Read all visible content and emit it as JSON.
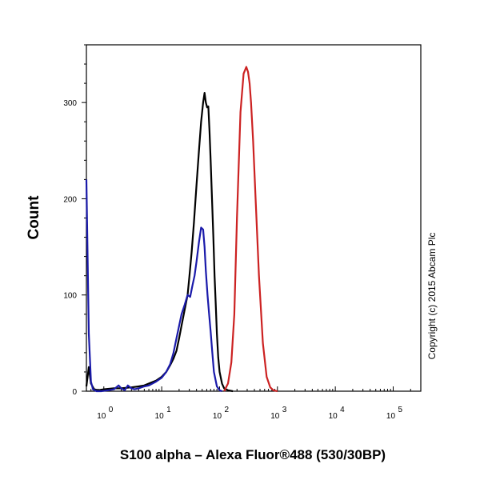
{
  "chart_data": {
    "type": "line",
    "title": "",
    "xlabel": "S100 alpha – Alexa Fluor®488 (530/30BP)",
    "ylabel": "Count",
    "x_scale": "log",
    "xlim": [
      0.5,
      300000
    ],
    "ylim": [
      0,
      360
    ],
    "y_ticks": [
      0,
      100,
      200,
      300
    ],
    "x_ticks": [
      {
        "base": "10",
        "exp": "0",
        "value": 1
      },
      {
        "base": "10",
        "exp": "1",
        "value": 10
      },
      {
        "base": "10",
        "exp": "2",
        "value": 100
      },
      {
        "base": "10",
        "exp": "3",
        "value": 1000
      },
      {
        "base": "10",
        "exp": "4",
        "value": 10000
      },
      {
        "base": "10",
        "exp": "5",
        "value": 100000
      }
    ],
    "grid": false,
    "annotation": "Copyright (c) 2015 Abcam Plc",
    "series": [
      {
        "color": "#000000",
        "x": [
          0.5,
          0.55,
          0.6,
          0.68,
          0.8,
          1.0,
          1.5,
          2,
          3,
          4,
          5,
          6,
          8,
          10,
          12,
          14,
          16,
          18,
          20,
          22,
          25,
          28,
          30,
          33,
          36,
          40,
          44,
          48,
          52,
          55,
          58,
          61,
          64,
          67,
          70,
          74,
          78,
          82,
          86,
          90,
          95,
          100,
          110,
          120,
          140,
          170
        ],
        "y": [
          5,
          25,
          8,
          2,
          1,
          2,
          3,
          3,
          4,
          5,
          6,
          8,
          11,
          15,
          20,
          27,
          34,
          42,
          55,
          68,
          85,
          100,
          118,
          145,
          175,
          215,
          250,
          280,
          300,
          310,
          300,
          295,
          296,
          270,
          240,
          200,
          160,
          120,
          90,
          60,
          35,
          20,
          8,
          3,
          1,
          0
        ]
      },
      {
        "color": "#1a1aaa",
        "x": [
          0.5,
          0.55,
          0.6,
          0.65,
          0.75,
          0.9,
          1.2,
          1.5,
          1.8,
          2.0,
          2.3,
          2.6,
          3.0,
          3.4,
          4,
          5,
          6,
          8,
          10,
          12,
          14,
          16,
          18,
          20,
          22,
          25,
          28,
          31,
          34,
          37,
          40,
          44,
          48,
          52,
          55,
          58,
          62,
          66,
          70,
          75,
          80,
          90,
          100,
          110
        ],
        "y": [
          220,
          60,
          10,
          2,
          0,
          0,
          1,
          2,
          6,
          3,
          1,
          6,
          3,
          2,
          3,
          5,
          6,
          10,
          14,
          20,
          28,
          40,
          55,
          68,
          80,
          90,
          100,
          98,
          110,
          120,
          135,
          155,
          170,
          168,
          150,
          125,
          100,
          80,
          62,
          40,
          20,
          5,
          1,
          0
        ]
      },
      {
        "color": "#cc2222",
        "x": [
          120,
          140,
          160,
          180,
          200,
          230,
          260,
          290,
          310,
          330,
          350,
          380,
          420,
          480,
          560,
          650,
          750,
          850,
          1000
        ],
        "y": [
          0,
          8,
          30,
          80,
          180,
          290,
          330,
          337,
          332,
          320,
          300,
          260,
          200,
          120,
          50,
          15,
          4,
          1,
          0
        ]
      }
    ]
  }
}
